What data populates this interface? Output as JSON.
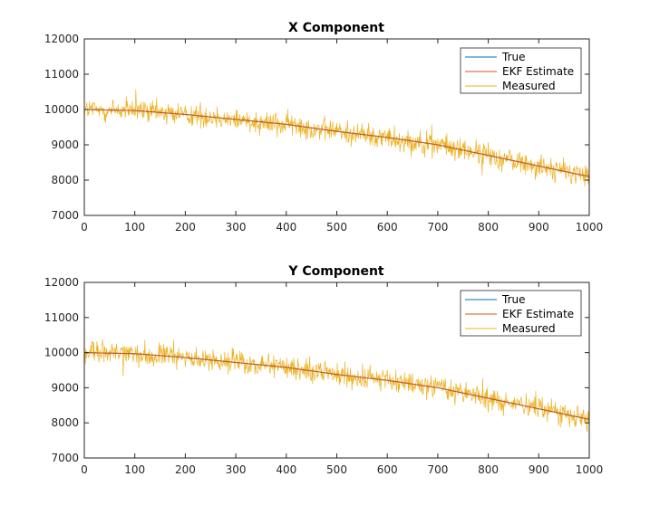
{
  "chart_data": [
    {
      "type": "line",
      "title": "X Component",
      "xlabel": "",
      "ylabel": "",
      "xlim": [
        0,
        1000
      ],
      "ylim": [
        7000,
        12000
      ],
      "xticks": [
        0,
        100,
        200,
        300,
        400,
        500,
        600,
        700,
        800,
        900,
        1000
      ],
      "yticks": [
        7000,
        8000,
        9000,
        10000,
        11000,
        12000
      ],
      "xtick_labels": [
        "0",
        "100",
        "200",
        "300",
        "400",
        "500",
        "600",
        "700",
        "800",
        "900",
        "1000"
      ],
      "ytick_labels": [
        "7000",
        "8000",
        "9000",
        "10000",
        "11000",
        "12000"
      ],
      "grid": false,
      "legend_position": "top-right",
      "series": [
        {
          "name": "True",
          "color": "#0072BD",
          "x": [
            0,
            100,
            200,
            300,
            400,
            500,
            600,
            700,
            800,
            900,
            1000
          ],
          "values": [
            10000,
            9970,
            9860,
            9720,
            9580,
            9380,
            9210,
            9000,
            8700,
            8400,
            8100
          ]
        },
        {
          "name": "EKF Estimate",
          "color": "#D95319",
          "x": [
            0,
            100,
            200,
            300,
            400,
            500,
            600,
            700,
            800,
            900,
            1000
          ],
          "values": [
            10000,
            9970,
            9860,
            9720,
            9580,
            9380,
            9210,
            9000,
            8700,
            8400,
            8100
          ]
        },
        {
          "name": "Measured",
          "color": "#EDB120",
          "x": [
            0,
            100,
            200,
            300,
            400,
            500,
            600,
            700,
            800,
            900,
            1000
          ],
          "values": [
            10000,
            9970,
            9860,
            9720,
            9580,
            9380,
            9210,
            9000,
            8700,
            8400,
            8100
          ],
          "noise_amplitude": 300
        }
      ]
    },
    {
      "type": "line",
      "title": "Y Component",
      "xlabel": "",
      "ylabel": "",
      "xlim": [
        0,
        1000
      ],
      "ylim": [
        7000,
        12000
      ],
      "xticks": [
        0,
        100,
        200,
        300,
        400,
        500,
        600,
        700,
        800,
        900,
        1000
      ],
      "yticks": [
        7000,
        8000,
        9000,
        10000,
        11000,
        12000
      ],
      "xtick_labels": [
        "0",
        "100",
        "200",
        "300",
        "400",
        "500",
        "600",
        "700",
        "800",
        "900",
        "1000"
      ],
      "ytick_labels": [
        "7000",
        "8000",
        "9000",
        "10000",
        "11000",
        "12000"
      ],
      "grid": false,
      "legend_position": "top-right",
      "series": [
        {
          "name": "True",
          "color": "#0072BD",
          "x": [
            0,
            100,
            200,
            300,
            400,
            500,
            600,
            700,
            800,
            900,
            1000
          ],
          "values": [
            10000,
            9970,
            9860,
            9720,
            9580,
            9380,
            9210,
            9000,
            8700,
            8400,
            8100
          ]
        },
        {
          "name": "EKF Estimate",
          "color": "#D95319",
          "x": [
            0,
            100,
            200,
            300,
            400,
            500,
            600,
            700,
            800,
            900,
            1000
          ],
          "values": [
            10000,
            9970,
            9860,
            9720,
            9580,
            9380,
            9210,
            9000,
            8700,
            8400,
            8100
          ]
        },
        {
          "name": "Measured",
          "color": "#EDB120",
          "x": [
            0,
            100,
            200,
            300,
            400,
            500,
            600,
            700,
            800,
            900,
            1000
          ],
          "values": [
            10000,
            9970,
            9860,
            9720,
            9580,
            9380,
            9210,
            9000,
            8700,
            8400,
            8100
          ],
          "noise_amplitude": 300
        }
      ]
    }
  ]
}
